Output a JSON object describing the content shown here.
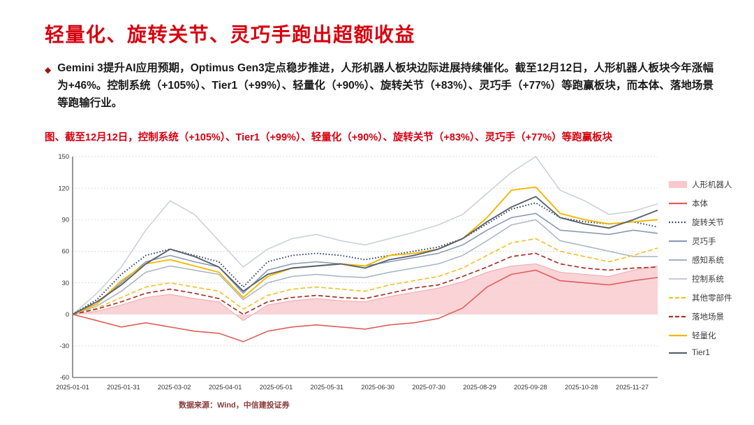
{
  "slide": {
    "title": "轻量化、旋转关节、灵巧手跑出超额收益",
    "bullet_marker": "◆",
    "bullet_text": "Gemini 3提升AI应用预期，Optimus Gen3定点稳步推进，人形机器人板块边际进展持续催化。截至12月12日，人形机器人板块今年涨幅为+46%。控制系统（+105%）、Tier1（+99%）、轻量化（+90%）、旋转关节（+83%）、灵巧手（+77%）等跑赢板块，而本体、落地场景等跑输行业。",
    "chart_caption": "图、截至12月12日，控制系统（+105%）、Tier1（+99%）、轻量化（+90%）、旋转关节（+83%）、灵巧手（+77%）等跑赢板块",
    "source": "数据来源：Wind，中信建投证券"
  },
  "colors": {
    "title_red": "#d7000f",
    "source_red": "#8c3b3b"
  },
  "chart_data": {
    "type": "line",
    "title": "",
    "xlabel": "",
    "ylabel": "",
    "ylim": [
      -60,
      150
    ],
    "y_ticks": [
      -60,
      -30,
      0,
      30,
      60,
      90,
      120,
      150
    ],
    "x_total_days": 345,
    "x_label_step_days": 30,
    "x_labels": [
      "2025-01-01",
      "2025-01-31",
      "2025-03-02",
      "2025-04-01",
      "2025-05-01",
      "2025-05-31",
      "2025-06-30",
      "2025-07-30",
      "2025-08-29",
      "2025-09-28",
      "2025-10-28",
      "2025-11-27"
    ],
    "grid": "dotted-horizontal",
    "legend_position": "right",
    "series": [
      {
        "name": "人形机器人",
        "color": "#f8c8cc",
        "stroke": "#f2a6ad",
        "style": "area",
        "width": 1,
        "legend_index": 0,
        "values": [
          0,
          3,
          9,
          16,
          19,
          15,
          12,
          -6,
          9,
          13,
          15,
          13,
          12,
          17,
          21,
          25,
          31,
          40,
          46,
          48,
          40,
          38,
          36,
          42,
          46
        ]
      },
      {
        "name": "控制系统",
        "color": "#c9ced6",
        "style": "solid",
        "width": 1.5,
        "legend_index": 5,
        "values": [
          0,
          20,
          45,
          80,
          108,
          95,
          70,
          45,
          62,
          72,
          76,
          70,
          66,
          72,
          78,
          85,
          95,
          115,
          135,
          150,
          118,
          108,
          95,
          98,
          105
        ]
      },
      {
        "name": "感知系统",
        "color": "#a6b3c4",
        "style": "solid",
        "width": 1.5,
        "legend_index": 4,
        "values": [
          0,
          8,
          22,
          40,
          46,
          42,
          38,
          14,
          30,
          36,
          38,
          36,
          35,
          40,
          44,
          48,
          56,
          70,
          85,
          90,
          70,
          65,
          60,
          55,
          55
        ]
      },
      {
        "name": "其他零部件",
        "color": "#f2c230",
        "style": "dashed",
        "width": 1.7,
        "legend_index": 6,
        "values": [
          0,
          6,
          16,
          26,
          30,
          26,
          22,
          5,
          18,
          24,
          26,
          24,
          22,
          28,
          32,
          36,
          44,
          56,
          68,
          72,
          60,
          55,
          50,
          56,
          63
        ]
      },
      {
        "name": "落地场景",
        "color": "#a93229",
        "style": "dashed",
        "width": 1.7,
        "legend_index": 7,
        "values": [
          0,
          5,
          12,
          20,
          24,
          20,
          15,
          0,
          12,
          16,
          18,
          16,
          15,
          20,
          25,
          28,
          36,
          45,
          55,
          58,
          48,
          44,
          42,
          44,
          45
        ]
      },
      {
        "name": "灵巧手",
        "color": "#8a9bb4",
        "style": "solid",
        "width": 1.6,
        "legend_index": 3,
        "values": [
          0,
          10,
          30,
          50,
          56,
          50,
          45,
          20,
          42,
          48,
          50,
          48,
          46,
          50,
          54,
          58,
          66,
          80,
          92,
          96,
          80,
          78,
          76,
          80,
          77
        ]
      },
      {
        "name": "旋转关节",
        "color": "#30406e",
        "style": "dotted",
        "width": 1.9,
        "legend_index": 2,
        "values": [
          0,
          14,
          38,
          56,
          62,
          56,
          50,
          26,
          50,
          56,
          58,
          56,
          52,
          56,
          60,
          64,
          72,
          86,
          100,
          106,
          92,
          88,
          86,
          88,
          83
        ]
      },
      {
        "name": "本体",
        "color": "#df5f5a",
        "style": "solid",
        "width": 1.6,
        "legend_index": 1,
        "values": [
          0,
          -6,
          -12,
          -8,
          -12,
          -16,
          -18,
          -26,
          -16,
          -12,
          -10,
          -12,
          -14,
          -10,
          -8,
          -4,
          6,
          26,
          38,
          42,
          32,
          30,
          28,
          32,
          35
        ]
      },
      {
        "name": "轻量化",
        "color": "#f3b800",
        "style": "solid",
        "width": 1.9,
        "legend_index": 8,
        "values": [
          0,
          10,
          32,
          48,
          52,
          46,
          40,
          16,
          36,
          44,
          46,
          48,
          46,
          56,
          58,
          62,
          72,
          92,
          118,
          121,
          96,
          90,
          86,
          88,
          90
        ]
      },
      {
        "name": "Tier1",
        "color": "#58616e",
        "style": "solid",
        "width": 1.9,
        "legend_index": 9,
        "values": [
          0,
          12,
          28,
          48,
          62,
          55,
          45,
          22,
          38,
          44,
          46,
          48,
          44,
          52,
          56,
          62,
          72,
          88,
          102,
          112,
          92,
          86,
          82,
          90,
          99
        ]
      }
    ]
  }
}
